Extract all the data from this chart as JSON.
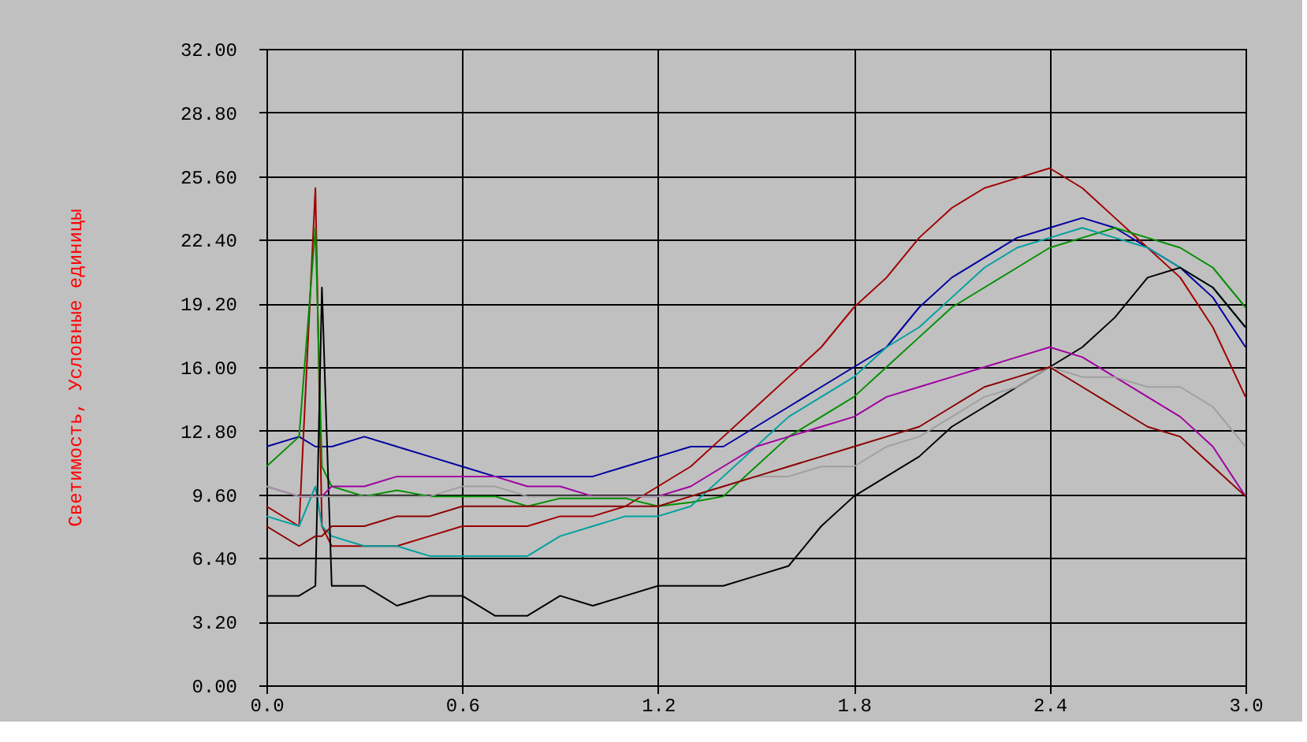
{
  "chart_data": {
    "type": "line",
    "ylabel": "Светимость, Условные единицы",
    "x": [
      0,
      0.1,
      0.15,
      0.17,
      0.2,
      0.3,
      0.4,
      0.5,
      0.6,
      0.7,
      0.8,
      0.9,
      1.0,
      1.1,
      1.2,
      1.3,
      1.4,
      1.5,
      1.6,
      1.7,
      1.8,
      1.9,
      2.0,
      2.1,
      2.2,
      2.3,
      2.4,
      2.5,
      2.6,
      2.7,
      2.8,
      2.9,
      3.0
    ],
    "series": [
      {
        "color": "#0000a0",
        "values": [
          12,
          12.5,
          12,
          12,
          12,
          12.5,
          12,
          11.5,
          11,
          10.5,
          10.5,
          10.5,
          10.5,
          11,
          11.5,
          12,
          12,
          13,
          14,
          15,
          16,
          17,
          19,
          20.5,
          21.5,
          22.5,
          23,
          23.5,
          23,
          22,
          21,
          19.5,
          17
        ]
      },
      {
        "color": "#a00000",
        "values": [
          9,
          8,
          25,
          8,
          7,
          7,
          7,
          7.5,
          8,
          8,
          8,
          8.5,
          8.5,
          9,
          10,
          11,
          12.5,
          14,
          15.5,
          17,
          19,
          20.5,
          22.5,
          24,
          25,
          25.5,
          26,
          25,
          23.5,
          22,
          20.5,
          18,
          14.5
        ]
      },
      {
        "color": "#009000",
        "values": [
          11,
          12.5,
          23,
          11,
          10,
          9.5,
          9.8,
          9.5,
          9.5,
          9.5,
          9,
          9.4,
          9.4,
          9.4,
          9,
          9.2,
          9.5,
          11,
          12.5,
          13.5,
          14.5,
          16,
          17.5,
          19,
          20,
          21,
          22,
          22.5,
          23,
          22.5,
          22,
          21,
          19
        ]
      },
      {
        "color": "#00a0a0",
        "values": [
          8.5,
          8,
          10,
          8,
          7.5,
          7,
          7,
          6.5,
          6.5,
          6.5,
          6.5,
          7.5,
          8,
          8.5,
          8.5,
          9,
          10.5,
          12,
          13.5,
          14.5,
          15.5,
          17,
          18,
          19.5,
          21,
          22,
          22.5,
          23,
          22.5,
          22,
          21,
          20,
          18
        ]
      },
      {
        "color": "#000000",
        "values": [
          4.5,
          4.5,
          5,
          20,
          5,
          5,
          4,
          4.5,
          4.5,
          3.5,
          3.5,
          4.5,
          4,
          4.5,
          5,
          5,
          5,
          5.5,
          6,
          8,
          9.5,
          10.5,
          11.5,
          13,
          14,
          15,
          16,
          17,
          18.5,
          20.5,
          21,
          20,
          18
        ]
      },
      {
        "color": "#a000a0",
        "values": [
          10,
          9.5,
          9.5,
          9.5,
          10,
          10,
          10.5,
          10.5,
          10.5,
          10.5,
          10,
          10,
          9.5,
          9.5,
          9.5,
          10,
          11,
          12,
          12.5,
          13,
          13.5,
          14.5,
          15,
          15.5,
          16,
          16.5,
          17,
          16.5,
          15.5,
          14.5,
          13.5,
          12,
          9.5
        ]
      },
      {
        "color": "#a0a0a0",
        "values": [
          10,
          9.5,
          9.5,
          9.5,
          9.5,
          9.5,
          9.5,
          9.5,
          10,
          10,
          9.5,
          9.5,
          9.5,
          9.5,
          9.5,
          9.5,
          10,
          10.5,
          10.5,
          11,
          11,
          12,
          12.5,
          13.5,
          14.5,
          15,
          16,
          15.5,
          15.5,
          15,
          15,
          14,
          12
        ]
      },
      {
        "color": "#8b0000",
        "values": [
          8,
          7,
          7.5,
          7.5,
          8,
          8,
          8.5,
          8.5,
          9,
          9,
          9,
          9,
          9,
          9,
          9,
          9.5,
          10,
          10.5,
          11,
          11.5,
          12,
          12.5,
          13,
          14,
          15,
          15.5,
          16,
          15,
          14,
          13,
          12.5,
          11,
          9.5
        ]
      }
    ],
    "xlim": [
      0,
      3.0
    ],
    "xticks": [
      {
        "value": 0,
        "label": "0.0"
      },
      {
        "value": 0.6,
        "label": "0.6"
      },
      {
        "value": 1.2,
        "label": "1.2"
      },
      {
        "value": 1.8,
        "label": "1.8"
      },
      {
        "value": 2.4,
        "label": "2.4"
      },
      {
        "value": 3.0,
        "label": "3.0"
      }
    ],
    "ylim": [
      0,
      32
    ],
    "yticks": [
      {
        "value": 0,
        "label": "0.00"
      },
      {
        "value": 3.2,
        "label": "3.20"
      },
      {
        "value": 6.4,
        "label": "6.40"
      },
      {
        "value": 9.6,
        "label": "9.60"
      },
      {
        "value": 12.8,
        "label": "12.80"
      },
      {
        "value": 16,
        "label": "16.00"
      },
      {
        "value": 19.2,
        "label": "19.20"
      },
      {
        "value": 22.4,
        "label": "22.40"
      },
      {
        "value": 25.6,
        "label": "25.60"
      },
      {
        "value": 28.8,
        "label": "28.80"
      },
      {
        "value": 32,
        "label": "32.00"
      }
    ],
    "grid": true,
    "legend": false,
    "line_style": "solid",
    "marker": "none"
  }
}
